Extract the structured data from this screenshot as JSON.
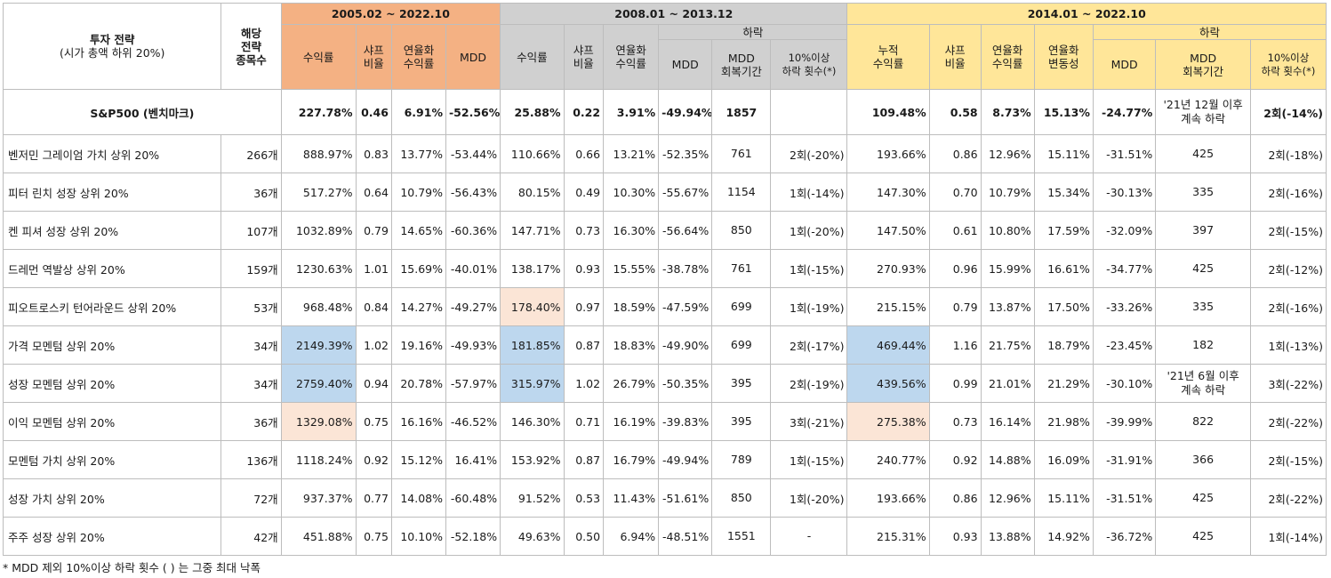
{
  "header": {
    "strategy": "투자 전략",
    "strategy_sub": "(시가 총액 하위 20%)",
    "count_lines": [
      "해당",
      "전략",
      "종목수"
    ],
    "period1": "2005.02 ~ 2022.10",
    "period2": "2008.01 ~ 2013.12",
    "period3": "2014.01 ~ 2022.10",
    "p1_cols": {
      "return": "수익률",
      "sharpe_lines": [
        "샤프",
        "비율"
      ],
      "annual_lines": [
        "연율화",
        "수익률"
      ],
      "mdd": "MDD"
    },
    "p2_cols": {
      "return": "수익률",
      "sharpe_lines": [
        "샤프",
        "비율"
      ],
      "annual_lines": [
        "연율화",
        "수익률"
      ],
      "decline": "하락",
      "mdd": "MDD",
      "mdd_recovery_lines": [
        "MDD",
        "회복기간"
      ],
      "drop_count_lines": [
        "10%이상",
        "하락 횟수(*)"
      ]
    },
    "p3_cols": {
      "return_lines": [
        "누적",
        "수익률"
      ],
      "sharpe_lines": [
        "샤프",
        "비율"
      ],
      "annual_lines": [
        "연율화",
        "수익률"
      ],
      "vol_lines": [
        "연율화",
        "변동성"
      ],
      "decline": "하락",
      "mdd": "MDD",
      "mdd_recovery_lines": [
        "MDD",
        "회복기간"
      ],
      "drop_count_lines": [
        "10%이상",
        "하락 횟수(*)"
      ]
    }
  },
  "benchmark": {
    "name": "S&P500 (벤치마크)",
    "p1": [
      "227.78%",
      "0.46",
      "6.91%",
      "-52.56%"
    ],
    "p2": [
      "25.88%",
      "0.22",
      "3.91%",
      "-49.94%",
      "1857",
      ""
    ],
    "p3": [
      "109.48%",
      "0.58",
      "8.73%",
      "15.13%",
      "-24.77%",
      [
        "'21년 12월 이후",
        "계속 하락"
      ],
      "2회(-14%)"
    ]
  },
  "rows": [
    {
      "name": "벤저민 그레이엄 가치 상위 20%",
      "count": "266개",
      "p1": [
        "888.97%",
        "0.83",
        "13.77%",
        "-53.44%"
      ],
      "p2": [
        "110.66%",
        "0.66",
        "13.21%",
        "-52.35%",
        "761",
        "2회(-20%)"
      ],
      "p3": [
        "193.66%",
        "0.86",
        "12.96%",
        "15.11%",
        "-31.51%",
        "425",
        "2회(-18%)"
      ]
    },
    {
      "name": "피터 린치 성장 상위 20%",
      "count": "36개",
      "p1": [
        "517.27%",
        "0.64",
        "10.79%",
        "-56.43%"
      ],
      "p2": [
        "80.15%",
        "0.49",
        "10.30%",
        "-55.67%",
        "1154",
        "1회(-14%)"
      ],
      "p3": [
        "147.30%",
        "0.70",
        "10.79%",
        "15.34%",
        "-30.13%",
        "335",
        "2회(-16%)"
      ]
    },
    {
      "name": "켄 피셔 성장 상위 20%",
      "count": "107개",
      "p1": [
        "1032.89%",
        "0.79",
        "14.65%",
        "-60.36%"
      ],
      "p2": [
        "147.71%",
        "0.73",
        "16.30%",
        "-56.64%",
        "850",
        "1회(-20%)"
      ],
      "p3": [
        "147.50%",
        "0.61",
        "10.80%",
        "17.59%",
        "-32.09%",
        "397",
        "2회(-15%)"
      ]
    },
    {
      "name": "드레먼 역발상 상위 20%",
      "count": "159개",
      "p1": [
        "1230.63%",
        "1.01",
        "15.69%",
        "-40.01%"
      ],
      "p2": [
        "138.17%",
        "0.93",
        "15.55%",
        "-38.78%",
        "761",
        "1회(-15%)"
      ],
      "p3": [
        "270.93%",
        "0.96",
        "15.99%",
        "16.61%",
        "-34.77%",
        "425",
        "2회(-12%)"
      ]
    },
    {
      "name": "피오트로스키 턴어라운드 상위 20%",
      "count": "53개",
      "p1": [
        "968.48%",
        "0.84",
        "14.27%",
        "-49.27%"
      ],
      "p2": [
        "178.40%",
        "0.97",
        "18.59%",
        "-47.59%",
        "699",
        "1회(-19%)"
      ],
      "p3": [
        "215.15%",
        "0.79",
        "13.87%",
        "17.50%",
        "-33.26%",
        "335",
        "2회(-16%)"
      ]
    },
    {
      "name": "가격 모멘텀 상위 20%",
      "count": "34개",
      "p1": [
        "2149.39%",
        "1.02",
        "19.16%",
        "-49.93%"
      ],
      "p2": [
        "181.85%",
        "0.87",
        "18.83%",
        "-49.90%",
        "699",
        "2회(-17%)"
      ],
      "p3": [
        "469.44%",
        "1.16",
        "21.75%",
        "18.79%",
        "-23.45%",
        "182",
        "1회(-13%)"
      ]
    },
    {
      "name": "성장 모멘텀 상위 20%",
      "count": "34개",
      "p1": [
        "2759.40%",
        "0.94",
        "20.78%",
        "-57.97%"
      ],
      "p2": [
        "315.97%",
        "1.02",
        "26.79%",
        "-50.35%",
        "395",
        "2회(-19%)"
      ],
      "p3": [
        "439.56%",
        "0.99",
        "21.01%",
        "21.29%",
        "-30.10%",
        [
          "'21년 6월 이후",
          "계속 하락"
        ],
        "3회(-22%)"
      ]
    },
    {
      "name": "이익 모멘텀 상위 20%",
      "count": "36개",
      "p1": [
        "1329.08%",
        "0.75",
        "16.16%",
        "-46.52%"
      ],
      "p2": [
        "146.30%",
        "0.71",
        "16.19%",
        "-39.83%",
        "395",
        "3회(-21%)"
      ],
      "p3": [
        "275.38%",
        "0.73",
        "16.14%",
        "21.98%",
        "-39.99%",
        "822",
        "2회(-22%)"
      ]
    },
    {
      "name": "모멘텀 가치 상위 20%",
      "count": "136개",
      "p1": [
        "1118.24%",
        "0.92",
        "15.12%",
        "16.41%"
      ],
      "p2": [
        "153.92%",
        "0.87",
        "16.79%",
        "-49.94%",
        "789",
        "1회(-15%)"
      ],
      "p3": [
        "240.77%",
        "0.92",
        "14.88%",
        "16.09%",
        "-31.91%",
        "366",
        "2회(-15%)"
      ]
    },
    {
      "name": "성장 가치 상위 20%",
      "count": "72개",
      "p1": [
        "937.37%",
        "0.77",
        "14.08%",
        "-60.48%"
      ],
      "p2": [
        "91.52%",
        "0.53",
        "11.43%",
        "-51.61%",
        "850",
        "1회(-20%)"
      ],
      "p3": [
        "193.66%",
        "0.86",
        "12.96%",
        "15.11%",
        "-31.51%",
        "425",
        "2회(-22%)"
      ]
    },
    {
      "name": "주주 성장 상위 20%",
      "count": "42개",
      "p1": [
        "451.88%",
        "0.75",
        "10.10%",
        "-52.18%"
      ],
      "p2": [
        "49.63%",
        "0.50",
        "6.94%",
        "-48.51%",
        "1551",
        "-"
      ],
      "p3": [
        "215.31%",
        "0.93",
        "13.88%",
        "14.92%",
        "-36.72%",
        "425",
        "1회(-14%)"
      ]
    }
  ],
  "highlights": {
    "blue": [
      "5.p1.0",
      "6.p1.0",
      "5.p2.0",
      "6.p2.0",
      "5.p3.0",
      "6.p3.0"
    ],
    "peach": [
      "7.p1.0",
      "4.p2.0",
      "7.p3.0"
    ]
  },
  "colors": {
    "period1_header": "#f4b183",
    "period2_header": "#d0d0d0",
    "period3_header": "#ffe699",
    "highlight_blue": "#bdd7ee",
    "highlight_peach": "#fbe5d6"
  },
  "footnote": "* MDD 제외 10%이상 하락 횟수 ( ) 는 그중 최대 낙폭"
}
